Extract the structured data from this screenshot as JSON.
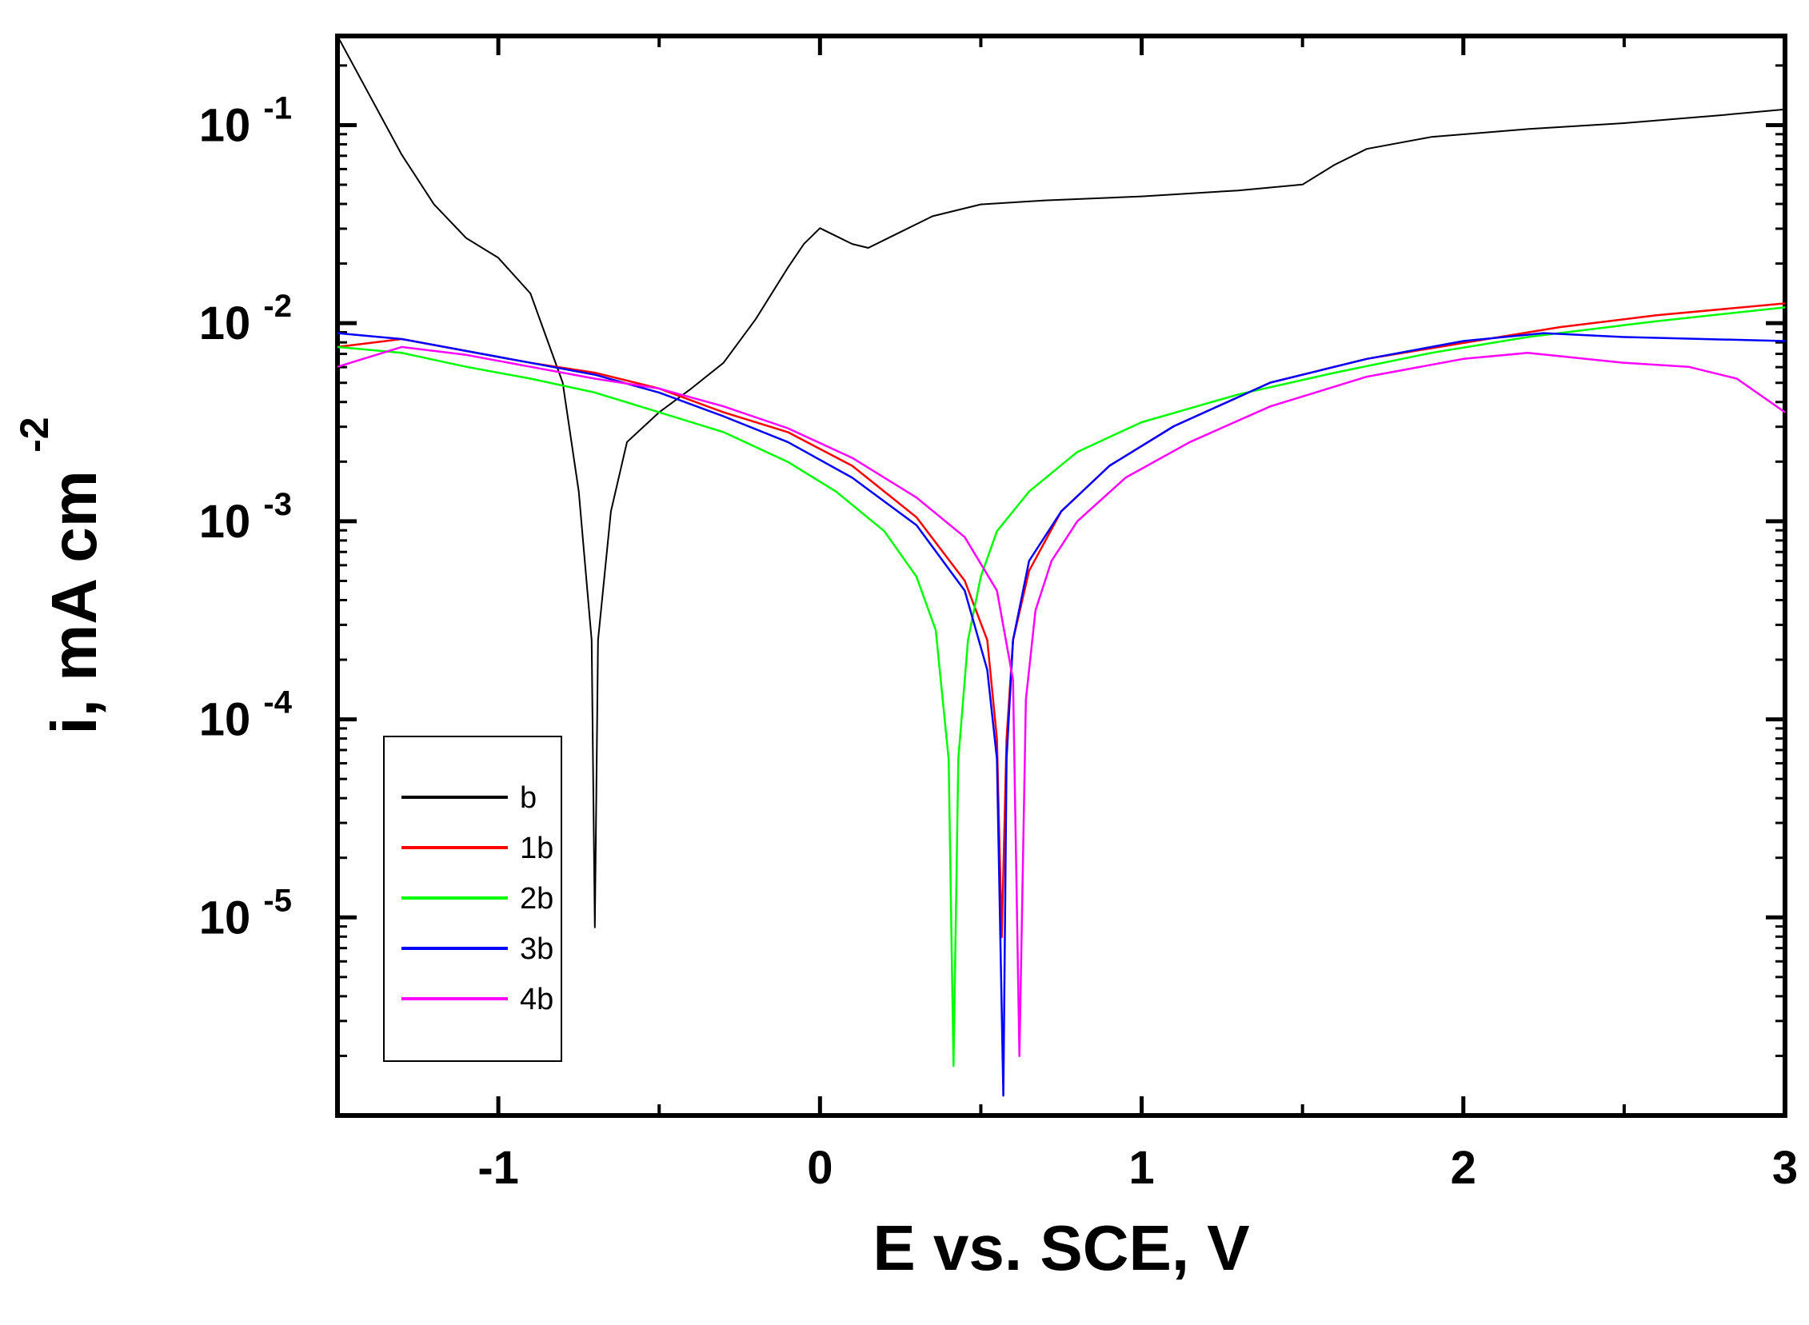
{
  "chart_data": {
    "type": "line",
    "title": "",
    "xlabel": "E vs. SCE, V",
    "ylabel": "i, mA cm",
    "ylabel_superscript": "-2",
    "y_scale": "log",
    "xlim": [
      -1.5,
      3
    ],
    "ylim_log10": [
      -6.0,
      -0.55
    ],
    "x_ticks": [
      {
        "value": -1,
        "label": "-1"
      },
      {
        "value": 0,
        "label": "0"
      },
      {
        "value": 1,
        "label": "1"
      },
      {
        "value": 2,
        "label": "2"
      },
      {
        "value": 3,
        "label": "3"
      }
    ],
    "y_ticks": [
      {
        "log": -1,
        "base": "10",
        "exp": "-1"
      },
      {
        "log": -2,
        "base": "10",
        "exp": "-2"
      },
      {
        "log": -3,
        "base": "10",
        "exp": "-3"
      },
      {
        "log": -4,
        "base": "10",
        "exp": "-4"
      },
      {
        "log": -5,
        "base": "10",
        "exp": "-5"
      }
    ],
    "legend_position": "bottom-left",
    "series": [
      {
        "name": "b",
        "color": "#000000",
        "E": [
          -1.5,
          -1.4,
          -1.3,
          -1.2,
          -1.1,
          -1.0,
          -0.9,
          -0.8,
          -0.75,
          -0.71,
          -0.7,
          -0.69,
          -0.65,
          -0.6,
          -0.5,
          -0.4,
          -0.3,
          -0.2,
          -0.1,
          -0.05,
          0.0,
          0.05,
          0.1,
          0.15,
          0.25,
          0.35,
          0.5,
          0.7,
          1.0,
          1.3,
          1.5,
          1.6,
          1.7,
          1.9,
          2.2,
          2.5,
          2.8,
          3.0
        ],
        "logi": [
          -0.55,
          -0.85,
          -1.15,
          -1.4,
          -1.57,
          -1.67,
          -1.85,
          -2.3,
          -2.85,
          -3.6,
          -5.05,
          -3.6,
          -2.95,
          -2.6,
          -2.45,
          -2.33,
          -2.2,
          -1.98,
          -1.72,
          -1.6,
          -1.52,
          -1.56,
          -1.6,
          -1.62,
          -1.54,
          -1.46,
          -1.4,
          -1.38,
          -1.36,
          -1.33,
          -1.3,
          -1.2,
          -1.12,
          -1.06,
          -1.02,
          -0.99,
          -0.95,
          -0.92
        ]
      },
      {
        "name": "1b",
        "color": "#ff0000",
        "E": [
          -1.5,
          -1.3,
          -1.1,
          -0.9,
          -0.7,
          -0.5,
          -0.3,
          -0.1,
          0.1,
          0.3,
          0.45,
          0.52,
          0.55,
          0.565,
          0.58,
          0.6,
          0.65,
          0.75,
          0.9,
          1.1,
          1.4,
          1.7,
          2.0,
          2.3,
          2.6,
          3.0
        ],
        "logi": [
          -2.12,
          -2.08,
          -2.14,
          -2.2,
          -2.25,
          -2.33,
          -2.45,
          -2.55,
          -2.72,
          -2.98,
          -3.3,
          -3.6,
          -4.1,
          -5.1,
          -4.1,
          -3.6,
          -3.25,
          -2.95,
          -2.72,
          -2.52,
          -2.3,
          -2.18,
          -2.1,
          -2.02,
          -1.96,
          -1.9
        ]
      },
      {
        "name": "2b",
        "color": "#00ff00",
        "E": [
          -1.5,
          -1.3,
          -1.1,
          -0.9,
          -0.7,
          -0.5,
          -0.3,
          -0.1,
          0.05,
          0.2,
          0.3,
          0.36,
          0.4,
          0.415,
          0.43,
          0.46,
          0.5,
          0.55,
          0.65,
          0.8,
          1.0,
          1.3,
          1.6,
          1.9,
          2.2,
          2.6,
          3.0
        ],
        "logi": [
          -2.12,
          -2.15,
          -2.22,
          -2.28,
          -2.35,
          -2.45,
          -2.55,
          -2.7,
          -2.85,
          -3.05,
          -3.28,
          -3.55,
          -4.2,
          -5.75,
          -4.2,
          -3.6,
          -3.28,
          -3.05,
          -2.85,
          -2.65,
          -2.5,
          -2.36,
          -2.25,
          -2.15,
          -2.07,
          -1.99,
          -1.92
        ]
      },
      {
        "name": "3b",
        "color": "#0000ff",
        "E": [
          -1.5,
          -1.3,
          -1.1,
          -0.9,
          -0.7,
          -0.5,
          -0.3,
          -0.1,
          0.1,
          0.3,
          0.45,
          0.52,
          0.55,
          0.57,
          0.58,
          0.6,
          0.65,
          0.75,
          0.9,
          1.1,
          1.4,
          1.7,
          2.0,
          2.25,
          2.5,
          3.0
        ],
        "logi": [
          -2.05,
          -2.08,
          -2.14,
          -2.2,
          -2.26,
          -2.35,
          -2.47,
          -2.6,
          -2.78,
          -3.02,
          -3.35,
          -3.75,
          -4.2,
          -5.9,
          -4.2,
          -3.6,
          -3.2,
          -2.95,
          -2.72,
          -2.52,
          -2.3,
          -2.18,
          -2.09,
          -2.05,
          -2.07,
          -2.09
        ]
      },
      {
        "name": "4b",
        "color": "#ff00ff",
        "E": [
          -1.5,
          -1.3,
          -1.1,
          -0.9,
          -0.7,
          -0.5,
          -0.3,
          -0.1,
          0.1,
          0.3,
          0.45,
          0.55,
          0.6,
          0.62,
          0.64,
          0.67,
          0.72,
          0.8,
          0.95,
          1.15,
          1.4,
          1.7,
          2.0,
          2.2,
          2.5,
          2.7,
          2.85,
          3.0
        ],
        "logi": [
          -2.22,
          -2.12,
          -2.16,
          -2.22,
          -2.28,
          -2.33,
          -2.42,
          -2.53,
          -2.68,
          -2.88,
          -3.08,
          -3.35,
          -3.8,
          -5.7,
          -3.9,
          -3.45,
          -3.2,
          -3.0,
          -2.78,
          -2.6,
          -2.42,
          -2.27,
          -2.18,
          -2.15,
          -2.2,
          -2.22,
          -2.28,
          -2.45
        ]
      }
    ]
  }
}
